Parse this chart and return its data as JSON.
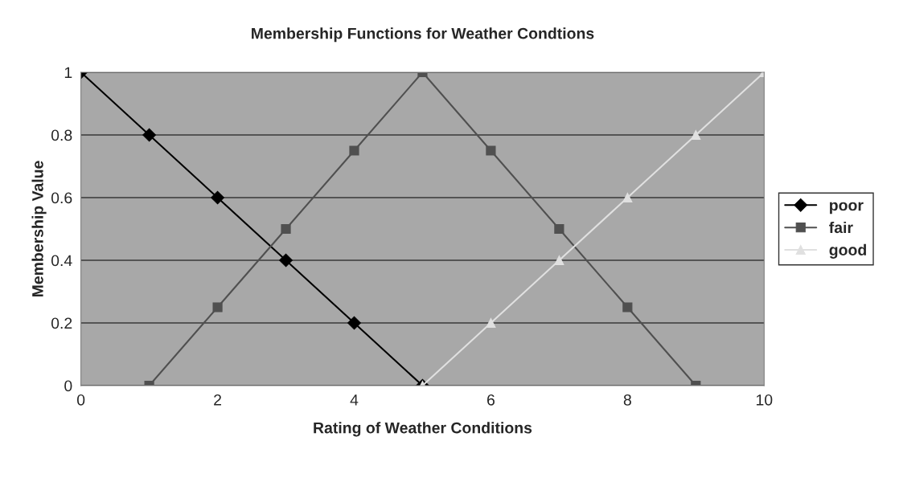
{
  "chart_data": {
    "type": "line",
    "title": "Membership Functions for Weather Condtions",
    "xlabel": "Rating of Weather Conditions",
    "ylabel": "Membership Value",
    "xlim": [
      0,
      10
    ],
    "xticks": [
      0,
      2,
      4,
      6,
      8,
      10
    ],
    "ylim": [
      0,
      1
    ],
    "yticks": [
      0,
      0.2,
      0.4,
      0.6,
      0.8,
      1
    ],
    "grid": "y",
    "legend": "right",
    "line_style": "solid",
    "series": [
      {
        "name": "poor",
        "color": "#000000",
        "marker": "diamond",
        "x": [
          0,
          1,
          2,
          3,
          4,
          5
        ],
        "values": [
          1,
          0.8,
          0.6,
          0.4,
          0.2,
          0
        ]
      },
      {
        "name": "fair",
        "color": "#505050",
        "marker": "square",
        "x": [
          1,
          2,
          3,
          4,
          5,
          6,
          7,
          8,
          9
        ],
        "values": [
          0,
          0.25,
          0.5,
          0.75,
          1,
          0.75,
          0.5,
          0.25,
          0
        ]
      },
      {
        "name": "good",
        "color": "#e0e0e0",
        "marker": "triangle",
        "x": [
          5,
          6,
          7,
          8,
          9,
          10
        ],
        "values": [
          0,
          0.2,
          0.4,
          0.6,
          0.8,
          1
        ]
      }
    ]
  }
}
